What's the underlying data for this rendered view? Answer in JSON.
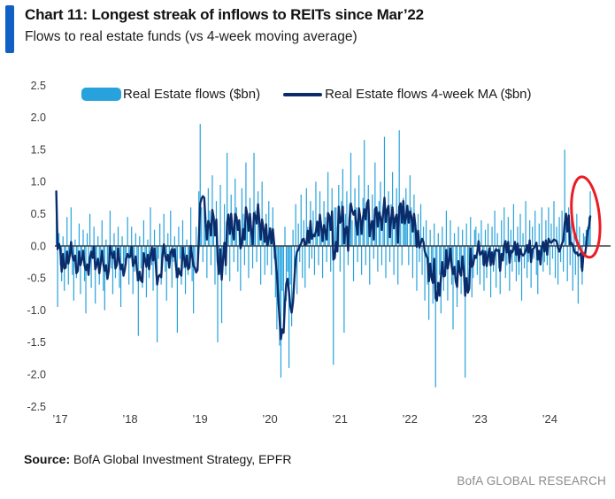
{
  "header": {
    "title": "Chart 11: Longest streak of inflows to REITs since Mar’22",
    "subtitle": "Flows to real estate funds (vs 4-week moving average)",
    "accent_color": "#1160C6"
  },
  "legend": {
    "items": [
      {
        "label": "Real Estate flows ($bn)",
        "type": "bar",
        "color": "#27A2DC"
      },
      {
        "label": "Real Estate flows 4-week MA ($bn)",
        "type": "line",
        "color": "#0B2C6B"
      }
    ]
  },
  "footer": {
    "source_label": "Source:",
    "source_text": " BofA Global Investment Strategy, EPFR",
    "brand": "BofA GLOBAL RESEARCH"
  },
  "chart_data": {
    "type": "bar",
    "title": "Chart 11: Longest streak of inflows to REITs since Mar’22",
    "subtitle": "Flows to real estate funds (vs 4-week moving average)",
    "frequency": "weekly",
    "x_start": "2017-W01",
    "x_end": "2024-W34",
    "weeks_per_year": 52,
    "ylim": [
      -2.5,
      2.5
    ],
    "grid": false,
    "legend_position": "top",
    "yticks": [
      "2.5",
      "2.0",
      "1.5",
      "1.0",
      "0.5",
      "0.0",
      "-0.5",
      "-1.0",
      "-1.5",
      "-2.0",
      "-2.5"
    ],
    "xticklabels": [
      "’17",
      "’18",
      "’19",
      "’20",
      "’21",
      "’22",
      "’23",
      "’24"
    ],
    "axis_text_color": "#3c3c3c",
    "zero_line_color": "#3d3d3d",
    "bar_series": {
      "name": "Real Estate flows ($bn)",
      "color": "#27A2DC",
      "values": [
        0.85,
        -0.95,
        0.2,
        -0.3,
        -0.55,
        0.15,
        -0.7,
        -0.25,
        0.45,
        -0.6,
        -0.2,
        0.6,
        -0.45,
        -0.85,
        0.1,
        -0.5,
        -0.3,
        0.35,
        -0.75,
        -0.15,
        0.25,
        -0.55,
        -1.05,
        0.2,
        -0.4,
        0.5,
        -0.65,
        -0.2,
        0.3,
        -0.9,
        -0.35,
        0.15,
        -0.6,
        -0.25,
        0.4,
        -0.7,
        -1.0,
        0.1,
        -0.45,
        -0.2,
        0.55,
        -0.35,
        -0.75,
        0.2,
        -0.5,
        -0.15,
        0.3,
        -0.65,
        -0.95,
        0.15,
        -0.4,
        -0.25,
        -0.3,
        0.45,
        -0.6,
        -0.2,
        0.3,
        -0.75,
        -0.4,
        0.2,
        -0.55,
        -1.4,
        0.15,
        -0.35,
        -0.65,
        0.4,
        -0.25,
        -0.8,
        0.1,
        -0.5,
        0.6,
        -0.3,
        -0.7,
        0.25,
        -0.45,
        -1.5,
        -0.2,
        0.35,
        -0.6,
        -0.15,
        0.5,
        -0.4,
        -0.85,
        0.2,
        -0.3,
        0.55,
        -0.65,
        -0.25,
        0.15,
        -0.5,
        -1.35,
        0.3,
        -0.2,
        -0.6,
        0.4,
        -0.35,
        -0.75,
        0.1,
        -0.45,
        -0.25,
        0.6,
        -0.55,
        -1.05,
        -0.35,
        0.3,
        -0.4,
        0.85,
        1.9,
        0.6,
        -0.25,
        0.75,
        0.4,
        -0.5,
        0.9,
        0.55,
        -0.3,
        1.1,
        0.45,
        -0.6,
        0.7,
        -1.5,
        -0.35,
        0.95,
        -1.2,
        -0.2,
        0.65,
        -0.45,
        1.45,
        0.3,
        -0.55,
        0.8,
        0.4,
        -0.25,
        1.05,
        0.6,
        -0.4,
        0.35,
        -0.7,
        0.9,
        0.5,
        -0.3,
        1.3,
        0.45,
        -0.5,
        0.75,
        0.2,
        -0.35,
        1.45,
        0.55,
        -0.25,
        0.85,
        0.4,
        -0.6,
        1.0,
        0.3,
        -0.45,
        0.5,
        -0.3,
        0.7,
        0.2,
        -0.45,
        0.6,
        -0.2,
        -0.8,
        -1.3,
        -0.9,
        -1.55,
        -2.05,
        -0.7,
        -1.1,
        0.3,
        -0.85,
        -0.4,
        -1.9,
        -0.6,
        -1.25,
        0.25,
        -0.5,
        0.65,
        -0.75,
        0.35,
        -0.25,
        0.8,
        -0.5,
        0.4,
        -0.65,
        0.9,
        0.3,
        -0.35,
        0.7,
        -0.2,
        0.55,
        -0.45,
        1.0,
        0.4,
        -0.3,
        0.85,
        0.25,
        -0.5,
        0.7,
        0.45,
        -0.25,
        1.15,
        0.5,
        -0.4,
        0.9,
        -1.85,
        0.6,
        0.6,
        0.3,
        0.95,
        -0.4,
        0.7,
        1.2,
        -1.35,
        0.5,
        0.85,
        -0.3,
        0.65,
        1.45,
        0.4,
        -0.55,
        0.9,
        0.6,
        -0.25,
        1.1,
        0.35,
        -0.45,
        0.75,
        1.65,
        -0.3,
        0.55,
        0.95,
        -0.6,
        0.4,
        0.8,
        -0.2,
        1.3,
        0.5,
        -0.4,
        0.7,
        1.0,
        -0.3,
        0.6,
        1.7,
        -0.5,
        0.45,
        0.85,
        -0.25,
        0.65,
        1.15,
        -0.45,
        0.35,
        0.9,
        -0.6,
        1.8,
        0.55,
        -0.3,
        0.75,
        0.4,
        0.9,
        0.45,
        -0.3,
        1.1,
        0.6,
        -0.5,
        0.8,
        0.35,
        -0.7,
        0.5,
        -0.25,
        0.65,
        -0.45,
        0.3,
        -0.85,
        0.4,
        -0.6,
        -1.15,
        0.25,
        -0.5,
        -0.9,
        0.35,
        -2.2,
        -0.65,
        0.2,
        -0.45,
        -1.05,
        0.3,
        -0.7,
        -0.4,
        0.55,
        -0.85,
        -0.25,
        0.4,
        -0.6,
        -1.3,
        0.2,
        -0.5,
        -0.95,
        0.3,
        -0.45,
        -0.75,
        0.25,
        -0.55,
        -2.05,
        0.35,
        -0.65,
        -0.3,
        0.45,
        -0.8,
        -0.5,
        0.25,
        0.3,
        -0.45,
        0.2,
        -0.6,
        0.4,
        -0.3,
        -0.7,
        0.25,
        -0.5,
        0.35,
        -0.25,
        -0.8,
        0.3,
        -0.4,
        0.55,
        -0.65,
        0.2,
        -0.35,
        -0.75,
        0.4,
        -0.2,
        0.6,
        -0.5,
        -0.3,
        0.45,
        -0.7,
        0.25,
        -0.4,
        0.65,
        -0.25,
        -0.55,
        0.3,
        -0.45,
        0.5,
        -0.85,
        0.2,
        -0.35,
        0.7,
        -0.5,
        -0.25,
        0.4,
        -0.65,
        0.3,
        -0.2,
        0.55,
        -0.45,
        -0.75,
        0.35,
        -0.3,
        0.6,
        -0.4,
        -0.25,
        0.4,
        -0.3,
        0.6,
        -0.45,
        0.35,
        -0.2,
        0.7,
        -0.5,
        0.3,
        -0.6,
        0.45,
        -0.25,
        0.55,
        -0.4,
        1.5,
        0.35,
        -0.55,
        0.6,
        -0.3,
        0.45,
        -0.7,
        0.25,
        -0.45,
        0.5,
        -0.9,
        0.3,
        -0.35,
        -0.6,
        0.2,
        0.15,
        0.25,
        0.3,
        0.45,
        0.85
      ]
    },
    "line_series": {
      "name": "Real Estate flows 4-week MA ($bn)",
      "color": "#0B2C6B",
      "definition": "4-week moving average of bar_series values",
      "ma_window": 4
    },
    "annotation": {
      "type": "ellipse",
      "color": "#EB1C24",
      "note": "circles the latest streak of weekly inflows",
      "x_center_week_index": 394,
      "value_center": 0.45,
      "value_half_span": 0.63
    }
  }
}
